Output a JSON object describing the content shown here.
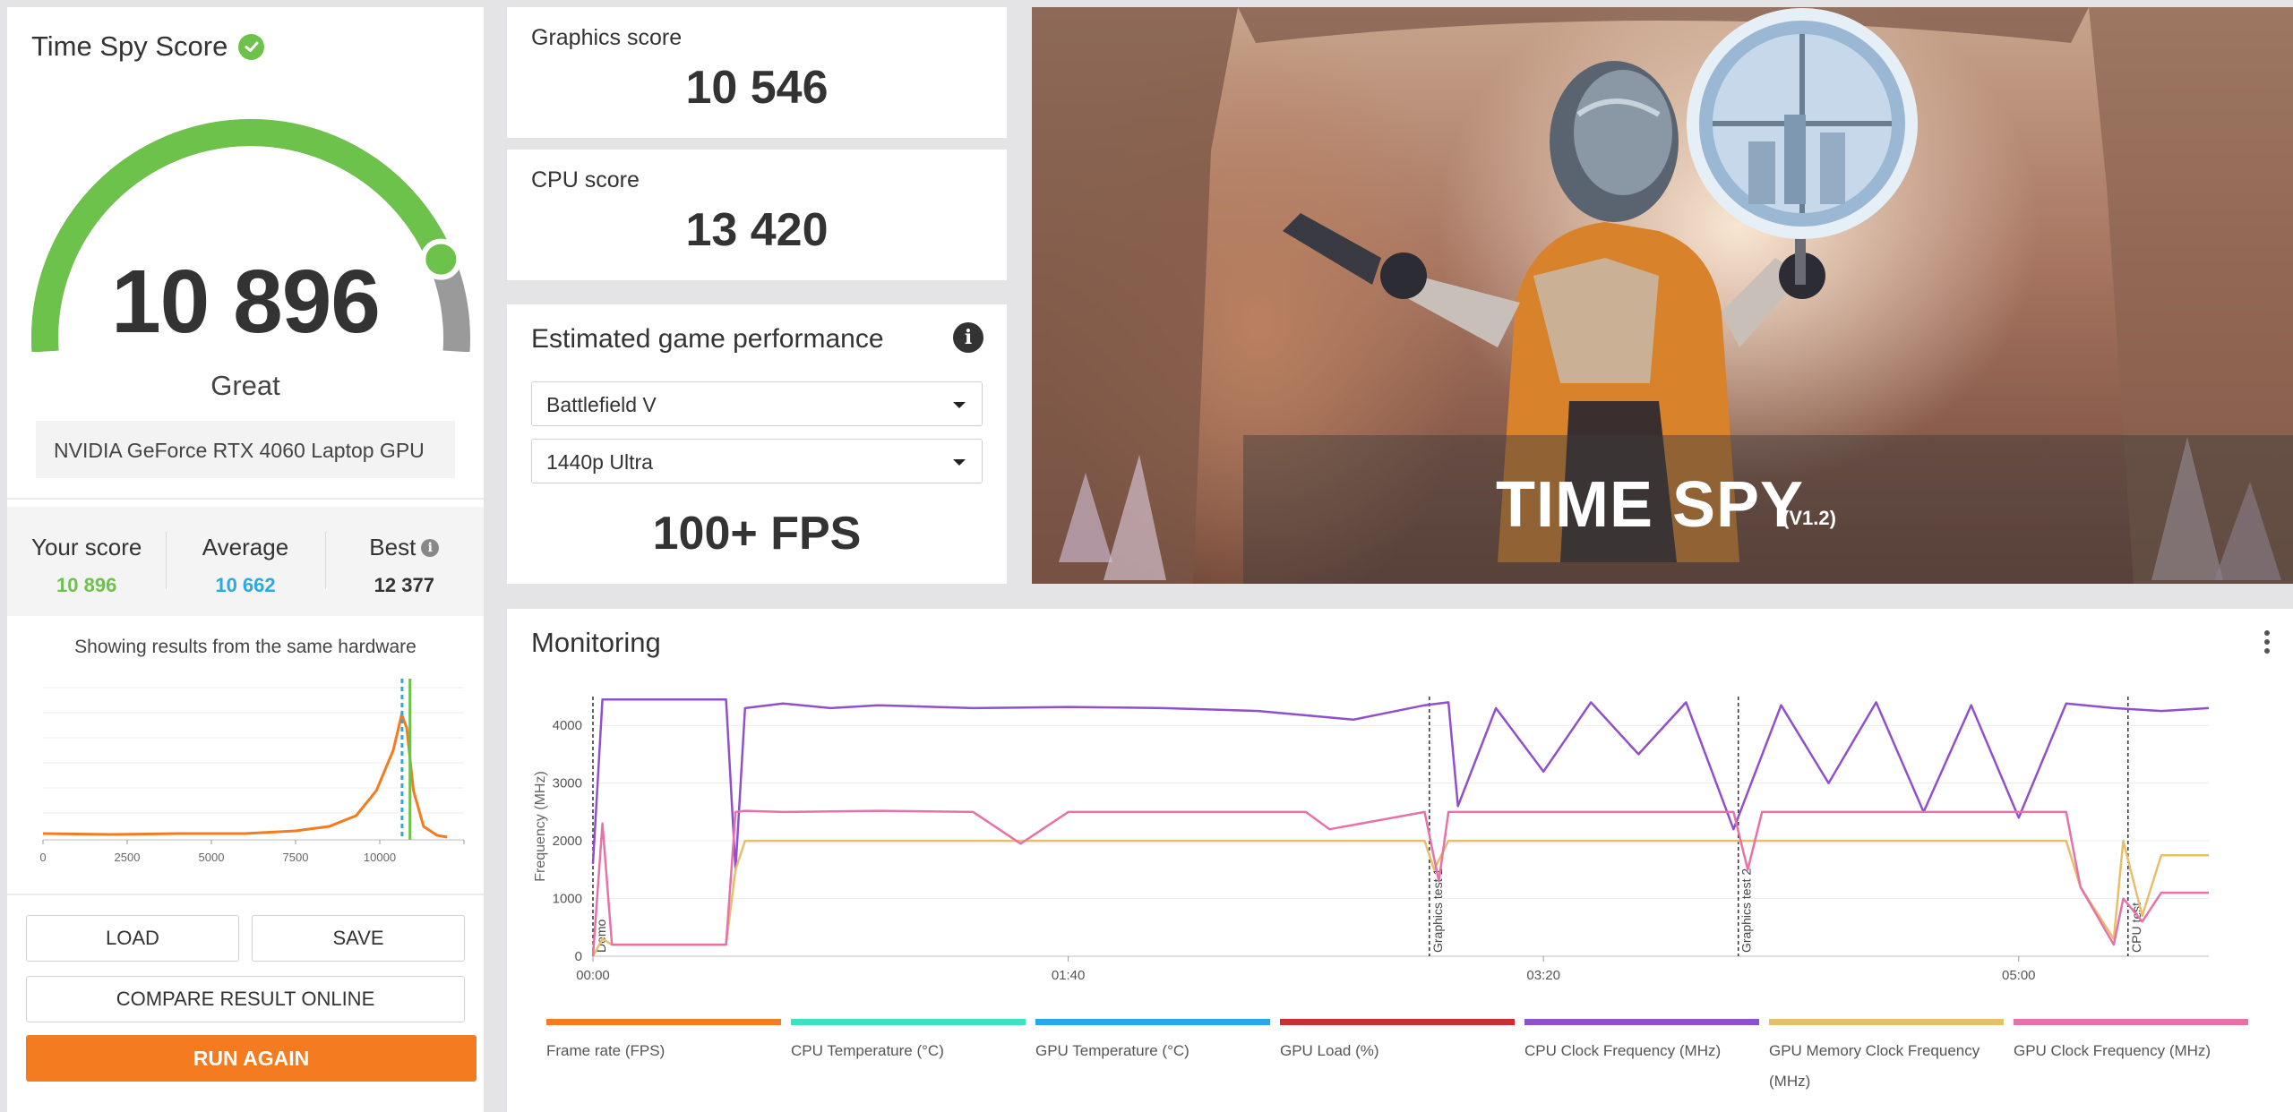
{
  "score": {
    "title": "Time Spy Score",
    "value": "10 896",
    "rating": "Great",
    "gpu": "NVIDIA GeForce RTX 4060 Laptop GPU",
    "gauge_fraction": 0.86,
    "colors": {
      "gauge": "#6cc24a",
      "gauge_track": "#9a9a9a"
    }
  },
  "stats": {
    "your_label": "Your score",
    "your_value": "10 896",
    "your_color": "#6cc24a",
    "avg_label": "Average",
    "avg_value": "10 662",
    "avg_color": "#2ea8e0",
    "best_label": "Best",
    "best_value": "12 377"
  },
  "distribution": {
    "caption": "Showing results from the same hardware",
    "x_ticks": [
      "0",
      "2500",
      "5000",
      "7500",
      "10000"
    ],
    "xlim": [
      0,
      12500
    ],
    "curve_color": "#f47b20",
    "your_score": 10896,
    "average": 10662
  },
  "buttons": {
    "load": "LOAD",
    "save": "SAVE",
    "compare": "COMPARE RESULT ONLINE",
    "run_again": "RUN AGAIN"
  },
  "graphics": {
    "label": "Graphics score",
    "value": "10 546"
  },
  "cpu": {
    "label": "CPU score",
    "value": "13 420"
  },
  "performance": {
    "title": "Estimated game performance",
    "game": "Battlefield V",
    "preset": "1440p Ultra",
    "fps": "100+ FPS"
  },
  "hero": {
    "title": "TIME SPY",
    "version": "(V1.2)"
  },
  "monitoring": {
    "title": "Monitoring",
    "ylabel": "Frequency (MHz)",
    "y_ticks": [
      "0",
      "1000",
      "2000",
      "3000",
      "4000"
    ],
    "ylim": [
      0,
      4500
    ],
    "x_ticks": [
      "00:00",
      "01:40",
      "03:20",
      "05:00"
    ],
    "markers": [
      "Demo",
      "Graphics test 1",
      "Graphics test 2",
      "CPU test"
    ],
    "legend": [
      {
        "label": "Frame rate (FPS)",
        "color": "#f47b20"
      },
      {
        "label": "CPU Temperature (°C)",
        "color": "#3de3c0"
      },
      {
        "label": "GPU Temperature (°C)",
        "color": "#28a8e8"
      },
      {
        "label": "GPU Load (%)",
        "color": "#cc2f2f"
      },
      {
        "label": "CPU Clock Frequency (MHz)",
        "color": "#9050cc"
      },
      {
        "label": "GPU Memory Clock Frequency (MHz)",
        "color": "#e8be6a"
      },
      {
        "label": "GPU Clock Frequency (MHz)",
        "color": "#e672a8"
      }
    ]
  },
  "chart_data": {
    "type": "line",
    "title": "Monitoring",
    "ylabel": "Frequency (MHz)",
    "ylim": [
      0,
      4500
    ],
    "xlim_seconds": [
      0,
      340
    ],
    "series": [
      {
        "name": "CPU Clock Frequency (MHz)",
        "t": [
          0,
          2,
          28,
          30,
          32,
          40,
          50,
          60,
          80,
          100,
          120,
          140,
          160,
          175,
          180,
          182,
          190,
          200,
          210,
          220,
          230,
          240,
          250,
          260,
          270,
          280,
          290,
          300,
          310,
          320,
          330,
          340
        ],
        "values": [
          1600,
          4450,
          4450,
          1500,
          4300,
          4380,
          4300,
          4350,
          4300,
          4320,
          4300,
          4250,
          4100,
          4350,
          4400,
          2600,
          4300,
          3200,
          4400,
          3500,
          4400,
          2200,
          4350,
          3000,
          4400,
          2500,
          4350,
          2400,
          4380,
          4300,
          4250,
          4300
        ]
      },
      {
        "name": "GPU Memory Clock Frequency (MHz)",
        "t": [
          0,
          2,
          4,
          28,
          30,
          32,
          40,
          100,
          175,
          177,
          180,
          240,
          245,
          310,
          313,
          320,
          322,
          326,
          330,
          340
        ],
        "values": [
          0,
          300,
          200,
          200,
          1500,
          2000,
          2000,
          2000,
          2000,
          1500,
          2000,
          2000,
          2000,
          2000,
          1200,
          300,
          2000,
          700,
          1750,
          1750
        ]
      },
      {
        "name": "GPU Clock Frequency (MHz)",
        "t": [
          0,
          2,
          4,
          28,
          30,
          32,
          40,
          60,
          80,
          90,
          100,
          150,
          155,
          175,
          178,
          180,
          240,
          243,
          246,
          310,
          313,
          320,
          322,
          326,
          330,
          340
        ],
        "values": [
          0,
          2300,
          200,
          200,
          2500,
          2520,
          2500,
          2520,
          2500,
          1950,
          2500,
          2500,
          2200,
          2500,
          1300,
          2500,
          2500,
          1500,
          2500,
          2500,
          1200,
          200,
          1000,
          600,
          1100,
          1100
        ]
      }
    ]
  }
}
